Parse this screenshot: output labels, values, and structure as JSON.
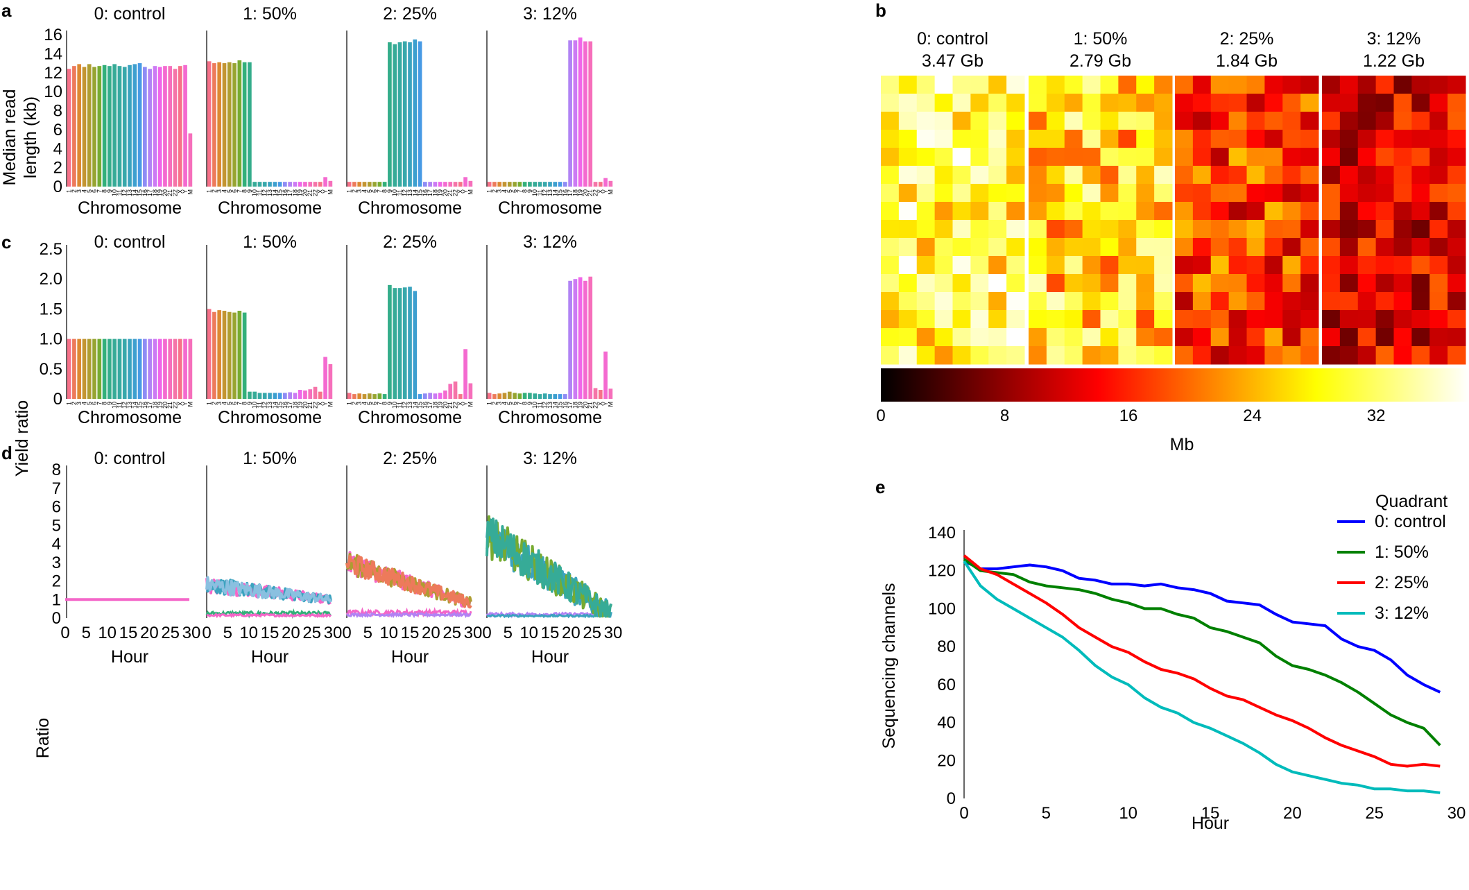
{
  "panels": {
    "a": "a",
    "b": "b",
    "c": "c",
    "d": "d",
    "e": "e"
  },
  "quadrants": [
    "0: control",
    "1: 50%",
    "2: 25%",
    "3: 12%"
  ],
  "chromosomes": [
    "1",
    "2",
    "3",
    "4",
    "5",
    "6",
    "7",
    "8",
    "9",
    "10",
    "11",
    "12",
    "13",
    "14",
    "15",
    "16",
    "17",
    "18",
    "19",
    "20",
    "21",
    "22",
    "X",
    "Y",
    "M"
  ],
  "chrom_colors": [
    "#f77189",
    "#ed7a5b",
    "#dc8932",
    "#c39532",
    "#ae9d31",
    "#97a431",
    "#77ab31",
    "#33b07a",
    "#35ad8b",
    "#36ab97",
    "#37aaa1",
    "#38a8ab",
    "#3ba3bf",
    "#3d9fcf",
    "#479ae4",
    "#8e8cf5",
    "#b183f4",
    "#cc7af4",
    "#f066e8",
    "#f46ad0",
    "#f66fbb",
    "#f574a8",
    "#f77189",
    "#f46ad0",
    "#f66fbb"
  ],
  "chart_data": [
    {
      "type": "bar",
      "panel": "a",
      "ylabel_lines": [
        "Median read",
        "length (kb)"
      ],
      "xlabel": "Chromosome",
      "ylim": [
        0,
        16
      ],
      "yticks": [
        0,
        2,
        4,
        6,
        8,
        10,
        12,
        14,
        16
      ],
      "series": [
        {
          "name": "0: control",
          "values": [
            12.4,
            12.7,
            12.9,
            12.6,
            12.9,
            12.6,
            12.7,
            12.8,
            12.7,
            12.9,
            12.7,
            12.6,
            12.8,
            12.9,
            13.0,
            12.6,
            12.4,
            12.7,
            12.6,
            12.7,
            12.7,
            12.4,
            12.7,
            12.8,
            5.6
          ]
        },
        {
          "name": "1: 50%",
          "values": [
            13.2,
            13.0,
            13.1,
            13.0,
            13.1,
            13.0,
            13.3,
            13.1,
            13.1,
            0.5,
            0.5,
            0.5,
            0.5,
            0.5,
            0.5,
            0.5,
            0.5,
            0.5,
            0.5,
            0.5,
            0.5,
            0.5,
            0.5,
            1.0,
            0.6
          ]
        },
        {
          "name": "2: 25%",
          "values": [
            0.5,
            0.5,
            0.5,
            0.5,
            0.5,
            0.5,
            0.5,
            0.5,
            15.2,
            15.0,
            15.2,
            15.3,
            15.2,
            15.5,
            15.3,
            0.5,
            0.5,
            0.5,
            0.5,
            0.5,
            0.5,
            0.5,
            0.5,
            1.0,
            0.6
          ]
        },
        {
          "name": "3: 12%",
          "values": [
            0.5,
            0.5,
            0.5,
            0.5,
            0.5,
            0.5,
            0.5,
            0.5,
            0.5,
            0.5,
            0.5,
            0.5,
            0.5,
            0.5,
            0.5,
            0.5,
            15.4,
            15.4,
            15.7,
            15.3,
            15.3,
            0.5,
            0.5,
            0.9,
            0.6
          ]
        }
      ]
    },
    {
      "type": "heatmap",
      "panel": "b",
      "titles": [
        "0: control",
        "1: 50%",
        "2: 25%",
        "3: 12%"
      ],
      "subtitles": [
        "3.47 Gb",
        "2.79 Gb",
        "1.84 Gb",
        "1.22 Gb"
      ],
      "colorbar": {
        "min": 0,
        "max": 38,
        "ticks": [
          0,
          8,
          16,
          24,
          32
        ],
        "label": "Mb"
      },
      "grid": {
        "rows": 16,
        "cols_per_block": 8
      }
    },
    {
      "type": "bar",
      "panel": "c",
      "ylabel": "Yield ratio",
      "xlabel": "Chromosome",
      "ylim": [
        0,
        2.5
      ],
      "yticks": [
        "0",
        "0.5",
        "1.0",
        "1.5",
        "2.0",
        "2.5"
      ],
      "series": [
        {
          "name": "0: control",
          "values": [
            1,
            1,
            1,
            1,
            1,
            1,
            1,
            1,
            1,
            1,
            1,
            1,
            1,
            1,
            1,
            1,
            1,
            1,
            1,
            1,
            1,
            1,
            1,
            1,
            1
          ]
        },
        {
          "name": "1: 50%",
          "values": [
            1.5,
            1.45,
            1.48,
            1.47,
            1.45,
            1.44,
            1.47,
            1.44,
            0.12,
            0.12,
            0.1,
            0.1,
            0.1,
            0.1,
            0.1,
            0.1,
            0.11,
            0.1,
            0.15,
            0.14,
            0.16,
            0.2,
            0.12,
            0.7,
            0.58
          ]
        },
        {
          "name": "2: 25%",
          "values": [
            0.1,
            0.08,
            0.09,
            0.08,
            0.09,
            0.08,
            0.09,
            0.08,
            1.9,
            1.85,
            1.85,
            1.86,
            1.87,
            1.8,
            0.08,
            0.09,
            0.1,
            0.09,
            0.1,
            0.14,
            0.25,
            0.29,
            0.08,
            0.83,
            0.26
          ]
        },
        {
          "name": "3: 12%",
          "values": [
            0.1,
            0.08,
            0.09,
            0.1,
            0.12,
            0.1,
            0.09,
            0.1,
            0.1,
            0.09,
            0.08,
            0.09,
            0.08,
            0.08,
            0.08,
            0.08,
            1.97,
            2.0,
            2.03,
            1.97,
            2.04,
            0.18,
            0.15,
            0.79,
            0.17
          ]
        }
      ]
    },
    {
      "type": "line",
      "panel": "d",
      "ylabel": "Ratio",
      "xlabel": "Hour",
      "xlim": [
        0,
        30
      ],
      "ylim": [
        0,
        8
      ],
      "xticks": [
        0,
        5,
        10,
        15,
        20,
        25,
        30
      ],
      "yticks": [
        0,
        1,
        2,
        3,
        4,
        5,
        6,
        7,
        8
      ],
      "series": [
        {
          "name": "0: control",
          "high_start": 1.0,
          "high_end": 1.0,
          "low": 1.0,
          "noise": 0
        },
        {
          "name": "1: 50%",
          "high_start": 1.8,
          "high_end": 1.0,
          "low": 0.25,
          "noise": 0.45
        },
        {
          "name": "2: 25%",
          "high_start": 3.0,
          "high_end": 0.8,
          "low": 0.3,
          "noise": 0.6
        },
        {
          "name": "3: 12%",
          "high_start": 4.5,
          "high_end": 0.2,
          "low": 0.2,
          "noise": 1.2
        }
      ]
    },
    {
      "type": "line",
      "panel": "e",
      "xlabel": "Hour",
      "ylabel": "Sequencing channels",
      "xlim": [
        0,
        30
      ],
      "ylim": [
        0,
        140
      ],
      "xticks": [
        0,
        5,
        10,
        15,
        20,
        25,
        30
      ],
      "yticks": [
        0,
        20,
        40,
        60,
        80,
        100,
        120,
        140
      ],
      "legend_title": "Quadrant",
      "legend_position": "top-right",
      "series": [
        {
          "name": "0: control",
          "color": "#0000ff",
          "x": [
            0,
            1,
            2,
            3,
            4,
            5,
            6,
            7,
            8,
            9,
            10,
            11,
            12,
            13,
            14,
            15,
            16,
            17,
            18,
            19,
            20,
            21,
            22,
            23,
            24,
            25,
            26,
            27,
            28,
            29
          ],
          "y": [
            125,
            121,
            121,
            122,
            123,
            122,
            120,
            116,
            115,
            113,
            113,
            112,
            113,
            111,
            110,
            108,
            104,
            103,
            102,
            97,
            93,
            92,
            91,
            84,
            80,
            78,
            73,
            65,
            60,
            56
          ]
        },
        {
          "name": "1: 50%",
          "color": "#008000",
          "x": [
            0,
            1,
            2,
            3,
            4,
            5,
            6,
            7,
            8,
            9,
            10,
            11,
            12,
            13,
            14,
            15,
            16,
            17,
            18,
            19,
            20,
            21,
            22,
            23,
            24,
            25,
            26,
            27,
            28,
            29
          ],
          "y": [
            126,
            120,
            119,
            118,
            114,
            112,
            111,
            110,
            108,
            105,
            103,
            100,
            100,
            97,
            95,
            90,
            88,
            85,
            82,
            75,
            70,
            68,
            65,
            61,
            56,
            50,
            44,
            40,
            37,
            28
          ]
        },
        {
          "name": "2: 25%",
          "color": "#ff0000",
          "x": [
            0,
            1,
            2,
            3,
            4,
            5,
            6,
            7,
            8,
            9,
            10,
            11,
            12,
            13,
            14,
            15,
            16,
            17,
            18,
            19,
            20,
            21,
            22,
            23,
            24,
            25,
            26,
            27,
            28,
            29
          ],
          "y": [
            128,
            121,
            118,
            113,
            108,
            103,
            97,
            90,
            85,
            80,
            77,
            72,
            68,
            66,
            63,
            58,
            54,
            52,
            48,
            44,
            41,
            37,
            32,
            28,
            25,
            22,
            18,
            17,
            18,
            17
          ]
        },
        {
          "name": "3: 12%",
          "color": "#00bbbb",
          "x": [
            0,
            1,
            2,
            3,
            4,
            5,
            6,
            7,
            8,
            9,
            10,
            11,
            12,
            13,
            14,
            15,
            16,
            17,
            18,
            19,
            20,
            21,
            22,
            23,
            24,
            25,
            26,
            27,
            28,
            29
          ],
          "y": [
            125,
            112,
            105,
            100,
            95,
            90,
            85,
            78,
            70,
            64,
            60,
            53,
            48,
            45,
            40,
            37,
            33,
            29,
            24,
            18,
            14,
            12,
            10,
            8,
            7,
            5,
            5,
            4,
            4,
            3
          ]
        }
      ]
    }
  ]
}
